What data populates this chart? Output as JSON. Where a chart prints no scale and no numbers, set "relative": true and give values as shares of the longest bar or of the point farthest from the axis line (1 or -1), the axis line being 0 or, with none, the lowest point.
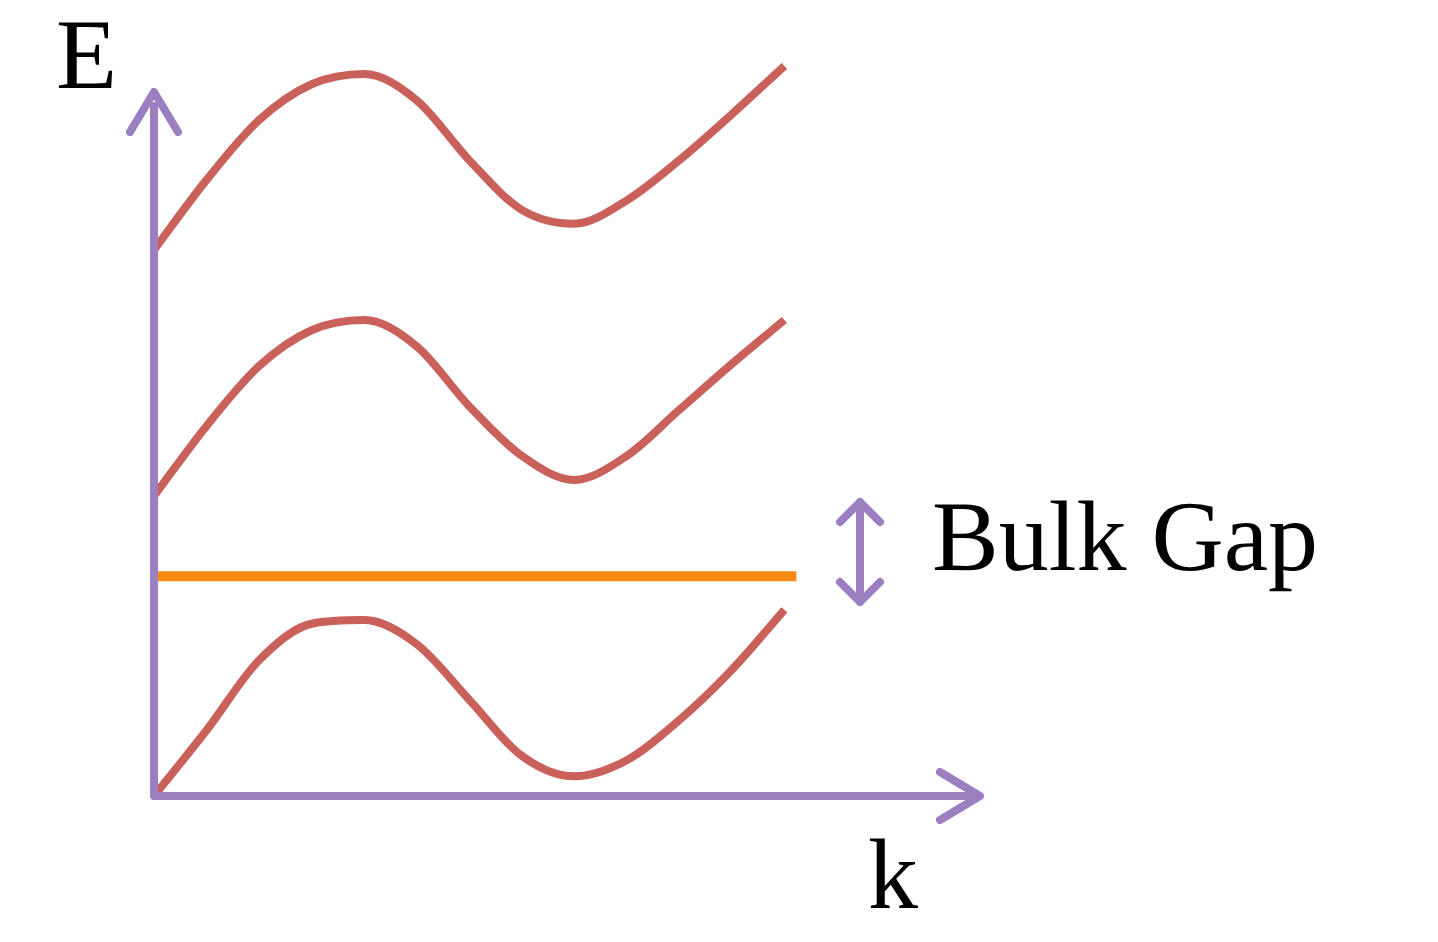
{
  "chart_data": {
    "type": "line",
    "xlabel": "k",
    "ylabel": "E",
    "relative": true,
    "marker": "none",
    "legend": false,
    "categories": [
      null,
      null,
      null,
      null,
      null,
      null,
      null,
      null,
      null,
      null,
      null,
      null,
      null,
      null,
      null,
      null
    ],
    "series": [
      {
        "color": "#c9605a",
        "values": [
          0.748,
          0.844,
          0.926,
          0.975,
          0.989,
          0.953,
          0.871,
          0.803,
          0.784,
          0.816,
          0.871,
          0.934,
          1,
          null,
          null,
          null
        ]
      },
      {
        "color": "#c9605a",
        "values": [
          0.411,
          0.507,
          0.589,
          0.638,
          0.652,
          0.616,
          0.534,
          0.466,
          0.433,
          0.466,
          0.529,
          0.592,
          0.652,
          null,
          null,
          null
        ]
      },
      {
        "color": "#c9605a",
        "values": [
          0,
          0.09,
          0.186,
          0.236,
          0.241,
          0.208,
          0.132,
          0.055,
          0.027,
          0.049,
          0.104,
          0.173,
          0.255,
          null,
          null,
          null
        ]
      }
    ],
    "ref_lines": [
      {
        "axis": "y",
        "value": 0.301,
        "color": "#f98a14"
      }
    ],
    "annotations": [
      "Bulk Gap"
    ]
  }
}
